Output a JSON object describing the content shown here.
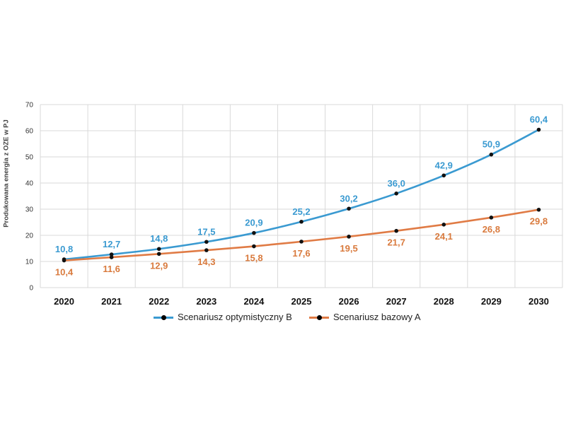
{
  "chart_data": {
    "type": "line",
    "ylabel": "Produkowana energia z OZE w PJ",
    "xlabel": "",
    "title": "",
    "categories": [
      "2020",
      "2021",
      "2022",
      "2023",
      "2024",
      "2025",
      "2026",
      "2027",
      "2028",
      "2029",
      "2030"
    ],
    "ylim": [
      0,
      70
    ],
    "yticks": [
      0,
      10,
      20,
      30,
      40,
      50,
      60,
      70
    ],
    "grid": true,
    "legend_position": "bottom",
    "series": [
      {
        "name": "Scenariusz optymistyczny B",
        "color": "#3a9ad1",
        "label_color": "#3a9ad1",
        "values": [
          10.8,
          12.7,
          14.8,
          17.5,
          20.9,
          25.2,
          30.2,
          36.0,
          42.9,
          50.9,
          60.4
        ],
        "labels": [
          "10,8",
          "12,7",
          "14,8",
          "17,5",
          "20,9",
          "25,2",
          "30,2",
          "36,0",
          "42,9",
          "50,9",
          "60,4"
        ],
        "label_side": "above"
      },
      {
        "name": "Scenariusz bazowy A",
        "color": "#e07b45",
        "label_color": "#d97a3d",
        "values": [
          10.4,
          11.6,
          12.9,
          14.3,
          15.8,
          17.6,
          19.5,
          21.7,
          24.1,
          26.8,
          29.8
        ],
        "labels": [
          "10,4",
          "11,6",
          "12,9",
          "14,3",
          "15,8",
          "17,6",
          "19,5",
          "21,7",
          "24,1",
          "26,8",
          "29,8"
        ],
        "label_side": "below"
      }
    ]
  }
}
